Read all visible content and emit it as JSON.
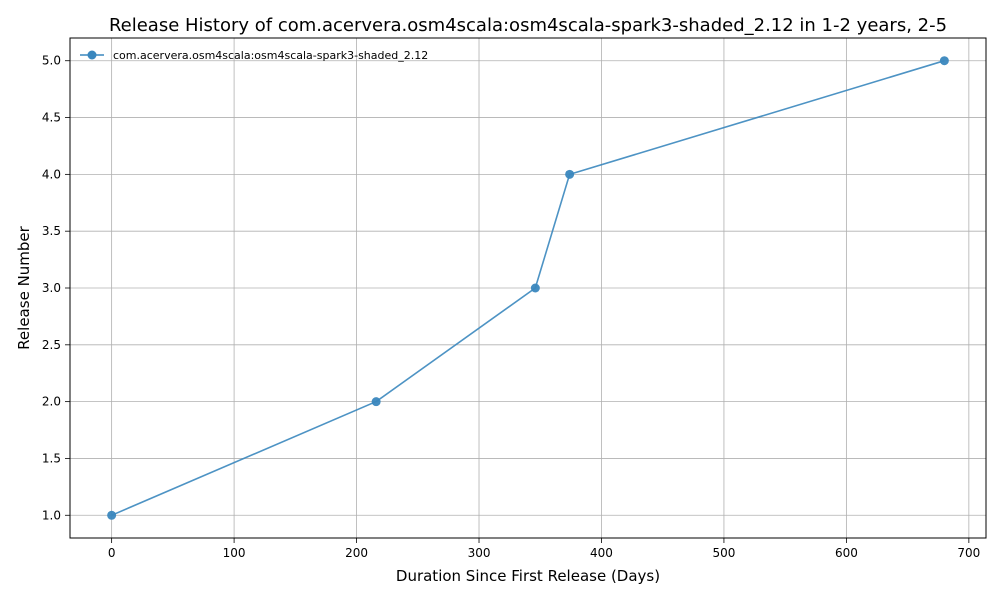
{
  "chart_data": {
    "type": "line",
    "title": "Release History of com.acervera.osm4scala:osm4scala-spark3-shaded_2.12 in 1-2 years, 2-5",
    "xlabel": "Duration Since First Release (Days)",
    "ylabel": "Release Number",
    "xlim": [
      -34,
      714
    ],
    "ylim": [
      0.8,
      5.2
    ],
    "xticks": [
      0,
      100,
      200,
      300,
      400,
      500,
      600,
      700
    ],
    "xtick_labels": [
      "0",
      "100",
      "200",
      "300",
      "400",
      "500",
      "600",
      "700"
    ],
    "yticks": [
      1.0,
      1.5,
      2.0,
      2.5,
      3.0,
      3.5,
      4.0,
      4.5,
      5.0
    ],
    "ytick_labels": [
      "1.0",
      "1.5",
      "2.0",
      "2.5",
      "3.0",
      "3.5",
      "4.0",
      "4.5",
      "5.0"
    ],
    "grid": true,
    "legend_position": "top-left",
    "series": [
      {
        "name": "com.acervera.osm4scala:osm4scala-spark3-shaded_2.12",
        "color": "#3a87be",
        "marker": "circle",
        "x": [
          0,
          216,
          346,
          374,
          680
        ],
        "y": [
          1,
          2,
          3,
          4,
          5
        ]
      }
    ]
  }
}
